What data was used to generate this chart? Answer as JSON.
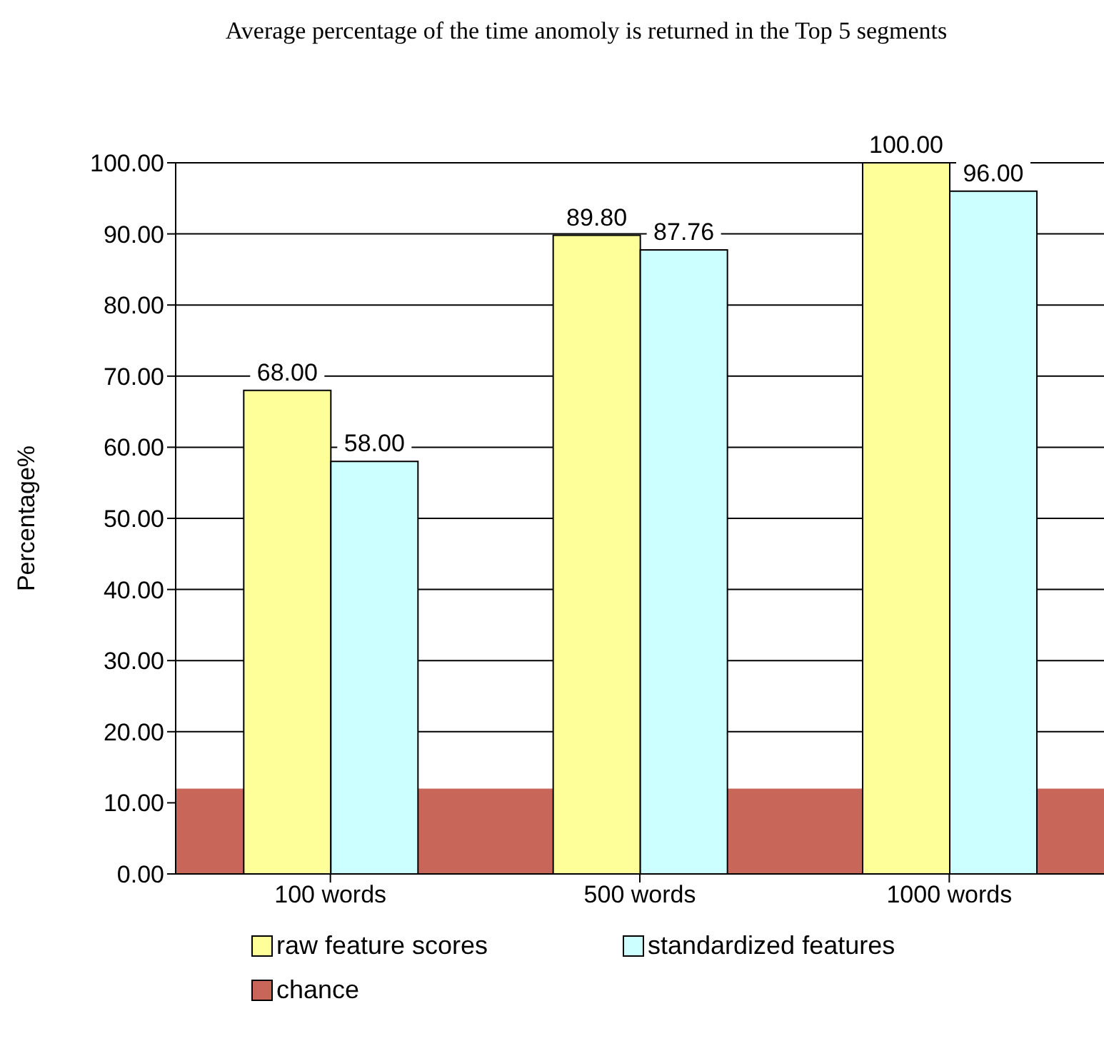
{
  "chart_data": {
    "type": "bar",
    "title": "Average percentage of the time anomoly is returned in the Top 5 segments",
    "ylabel": "Percentage%",
    "categories": [
      "100 words",
      "500 words",
      "1000 words"
    ],
    "series": [
      {
        "name": "raw feature scores",
        "color": "#ffff99",
        "values": [
          68,
          89.8,
          100
        ],
        "value_labels": [
          "68.00",
          "89.80",
          "100.00"
        ]
      },
      {
        "name": "standardized  features",
        "color": "#ccffff",
        "values": [
          58,
          87.76,
          96
        ],
        "value_labels": [
          "58.00",
          "87.76",
          "96.00"
        ]
      }
    ],
    "bands": [
      {
        "axis": "y",
        "from": 0,
        "to": 12,
        "label": "chance",
        "color": "#c8665a"
      }
    ],
    "ylim": [
      0,
      100
    ],
    "yticks": [
      {
        "value": 0,
        "label": "0.00"
      },
      {
        "value": 10,
        "label": "10.00"
      },
      {
        "value": 20,
        "label": "20.00"
      },
      {
        "value": 30,
        "label": "30.00"
      },
      {
        "value": 40,
        "label": "40.00"
      },
      {
        "value": 50,
        "label": "50.00"
      },
      {
        "value": 60,
        "label": "60.00"
      },
      {
        "value": 70,
        "label": "70.00"
      },
      {
        "value": 80,
        "label": "80.00"
      },
      {
        "value": 90,
        "label": "90.00"
      },
      {
        "value": 100,
        "label": "100.00"
      }
    ],
    "grid": "y",
    "legend": "bottom"
  }
}
